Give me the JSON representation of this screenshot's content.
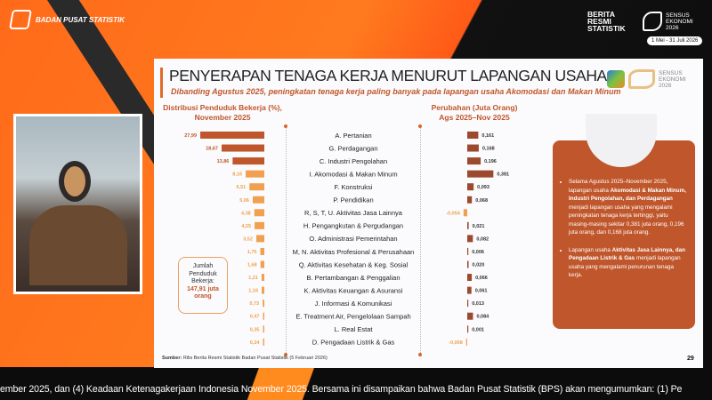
{
  "header": {
    "org": "BADAN PUSAT STATISTIK",
    "brs": [
      "BERITA",
      "RESMI",
      "STATISTIK"
    ],
    "sensus": [
      "SENSUS",
      "EKONOMI",
      "2026"
    ],
    "sensus_dates": "1 Mei - 31 Juli 2026"
  },
  "slide": {
    "title": "PENYERAPAN TENAGA KERJA MENURUT LAPANGAN USAHA",
    "subtitle": "Dibanding Agustus 2025, peningkatan tenaga kerja paling banyak pada lapangan usaha Akomodasi dan Makan Minum",
    "logo_text": [
      "SENSUS",
      "EKONOMI",
      "2026"
    ],
    "total_box": {
      "line1": "Jumlah",
      "line2": "Penduduk",
      "line3": "Bekerja:",
      "value": "147,91 juta",
      "unit": "orang"
    },
    "info": {
      "b1_pre": "Selama Agustus 2025–November 2025, lapangan usaha ",
      "b1_bold": "Akomodasi & Makan Minum, Industri Pengolahan, dan Perdagangan",
      "b1_post": " menjadi lapangan usaha yang mengalami peningkatan tenaga kerja tertinggi, yaitu masing-masing sekitar 0,381 juta orang, 0,196 juta orang, dan 0,168 juta orang.",
      "b2_pre": "Lapangan usaha ",
      "b2_bold": "Aktivitas Jasa Lainnya, dan Pengadaan Listrik & Gas",
      "b2_post": " menjadi lapangan usaha yang mengalami penurunan tenaga kerja."
    },
    "source_label": "Sumber:",
    "source": "Rilis Berita Resmi Statistik Badan Pusat Statistik (5 Februari 2026)",
    "page": "29"
  },
  "ticker": "ember 2025, dan (4) Keadaan Ketenagakerjaan Indonesia November 2025. Bersama ini disampaikan bahwa Badan Pusat Statistik (BPS) akan mengumumkan: (1) Pe",
  "colors": {
    "dark_orange": "#c0562b",
    "light_orange": "#f0a050",
    "brown": "#9b4a2e"
  },
  "chart_data": {
    "type": "bar",
    "orientation": "horizontal",
    "categories": [
      "A. Pertanian",
      "G. Perdagangan",
      "C. Industri Pengolahan",
      "I. Akomodasi & Makan Minum",
      "F. Konstruksi",
      "P. Pendidikan",
      "R, S, T, U. Aktivitas Jasa Lainnya",
      "H. Pengangkutan & Pergudangan",
      "O. Administrasi Pemerintahan",
      "M, N. Aktivitas Profesional & Perusahaan",
      "Q. Aktivitas Kesehatan & Keg. Sosial",
      "B. Pertambangan & Penggalian",
      "K. Aktivitas Keuangan & Asuransi",
      "J. Informasi & Komunikasi",
      "E. Treatment Air, Pengelolaan Sampah",
      "L. Real Estat",
      "D. Pengadaan Listrik & Gas"
    ],
    "series": [
      {
        "name": "Distribusi Penduduk Bekerja (%), November 2025",
        "title_lines": [
          "Distribusi Penduduk Bekerja (%),",
          "November 2025"
        ],
        "values": [
          27.99,
          18.67,
          13.86,
          8.16,
          6.51,
          5.06,
          4.38,
          4.25,
          3.52,
          1.75,
          1.68,
          1.21,
          1.16,
          0.73,
          0.47,
          0.35,
          0.24
        ],
        "labels": [
          "27,99",
          "18,67",
          "13,86",
          "8,16",
          "6,51",
          "5,06",
          "4,38",
          "4,25",
          "3,52",
          "1,75",
          "1,68",
          "1,21",
          "1,16",
          "0,73",
          "0,47",
          "0,35",
          "0,24"
        ]
      },
      {
        "name": "Perubahan (Juta Orang) Ags 2025–Nov 2025",
        "title_lines": [
          "Perubahan (Juta Orang)",
          "Ags 2025–Nov 2025"
        ],
        "values": [
          0.161,
          0.168,
          0.196,
          0.381,
          0.093,
          0.068,
          -0.054,
          0.021,
          0.082,
          0.006,
          0.02,
          0.066,
          0.061,
          0.013,
          0.084,
          0.001,
          -0.008
        ],
        "labels": [
          "0,161",
          "0,168",
          "0,196",
          "0,381",
          "0,093",
          "0,068",
          "-0,054",
          "0,021",
          "0,082",
          "0,006",
          "0,020",
          "0,066",
          "0,061",
          "0,013",
          "0,084",
          "0,001",
          "-0,008"
        ]
      }
    ]
  }
}
